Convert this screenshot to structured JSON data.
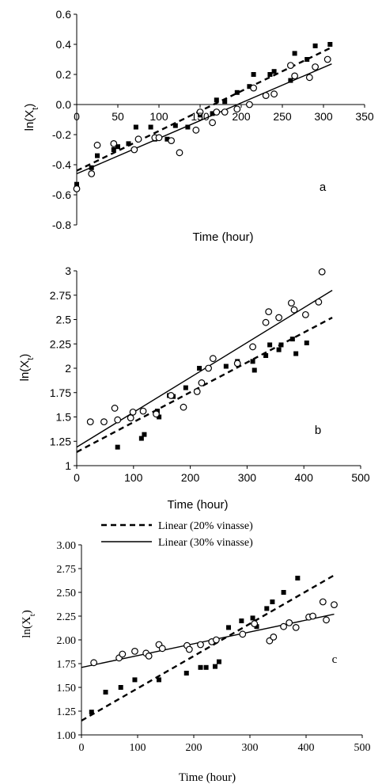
{
  "chart_data": [
    {
      "type": "scatter",
      "panel_label": "a",
      "font": "sans",
      "xlabel": "Time (hour)",
      "ylabel_base": "ln(X",
      "ylabel_sub": "t",
      "ylabel_close": ")",
      "xlim": [
        0,
        350
      ],
      "ylim": [
        -0.8,
        0.6
      ],
      "x_axis_at_zero": true,
      "xticks": [
        "0",
        "50",
        "100",
        "150",
        "200",
        "250",
        "300",
        "350"
      ],
      "yticks": [
        "-0.8",
        "-0.6",
        "-0.4",
        "-0.2",
        "0.0",
        "0.2",
        "0.4",
        "0.6"
      ],
      "legend": null,
      "series": [
        {
          "marker": "square-filled",
          "x": [
            0,
            18,
            25,
            45,
            50,
            63,
            72,
            90,
            95,
            110,
            120,
            135,
            150,
            165,
            170,
            180,
            195,
            210,
            215,
            235,
            240,
            260,
            265,
            280,
            290,
            308
          ],
          "y": [
            -0.53,
            -0.42,
            -0.34,
            -0.3,
            -0.28,
            -0.26,
            -0.15,
            -0.15,
            -0.23,
            -0.23,
            -0.14,
            -0.15,
            -0.07,
            -0.06,
            0.03,
            0.02,
            0.08,
            0.12,
            0.2,
            0.2,
            0.22,
            0.16,
            0.34,
            0.3,
            0.39,
            0.4
          ],
          "trend": {
            "style": "dashed",
            "x": [
              0,
              310
            ],
            "y": [
              -0.44,
              0.38
            ]
          }
        },
        {
          "marker": "circle-open",
          "x": [
            0,
            18,
            25,
            45,
            70,
            75,
            95,
            100,
            115,
            125,
            145,
            150,
            165,
            170,
            180,
            195,
            210,
            215,
            230,
            240,
            260,
            265,
            283,
            290,
            305
          ],
          "y": [
            -0.56,
            -0.46,
            -0.27,
            -0.26,
            -0.3,
            -0.23,
            -0.22,
            -0.22,
            -0.24,
            -0.32,
            -0.17,
            -0.05,
            -0.12,
            -0.05,
            -0.05,
            -0.03,
            0.0,
            0.11,
            0.06,
            0.07,
            0.26,
            0.19,
            0.18,
            0.25,
            0.3
          ],
          "trend": {
            "style": "solid",
            "x": [
              0,
              310
            ],
            "y": [
              -0.46,
              0.27
            ]
          }
        }
      ]
    },
    {
      "type": "scatter",
      "panel_label": "b",
      "font": "sans",
      "xlabel": "Time (hour)",
      "ylabel_base": "ln(X",
      "ylabel_sub": "t",
      "ylabel_close": ")",
      "xlim": [
        0,
        500
      ],
      "ylim": [
        1,
        3
      ],
      "x_axis_at_zero": false,
      "xticks": [
        "0",
        "100",
        "200",
        "300",
        "400",
        "500"
      ],
      "yticks": [
        "1",
        "1.25",
        "1.5",
        "1.75",
        "2",
        "2.25",
        "2.5",
        "2.75",
        "3"
      ],
      "legend": null,
      "series": [
        {
          "marker": "square-filled",
          "x": [
            72,
            114,
            119,
            142,
            145,
            163,
            170,
            192,
            216,
            263,
            283,
            310,
            313,
            333,
            340,
            356,
            360,
            380,
            386,
            405
          ],
          "y": [
            1.19,
            1.28,
            1.32,
            1.56,
            1.5,
            1.72,
            1.71,
            1.8,
            2.0,
            2.02,
            2.07,
            2.07,
            1.98,
            2.13,
            2.24,
            2.19,
            2.24,
            2.3,
            2.15,
            2.26
          ],
          "trend": {
            "style": "dashed",
            "x": [
              0,
              450
            ],
            "y": [
              1.14,
              2.52
            ]
          }
        },
        {
          "marker": "circle-open",
          "x": [
            24,
            48,
            67,
            72,
            95,
            99,
            117,
            140,
            166,
            188,
            212,
            220,
            232,
            240,
            283,
            310,
            333,
            338,
            356,
            378,
            383,
            403,
            426,
            432
          ],
          "y": [
            1.45,
            1.45,
            1.59,
            1.47,
            1.49,
            1.55,
            1.56,
            1.53,
            1.72,
            1.6,
            1.76,
            1.85,
            2.0,
            2.1,
            2.05,
            2.22,
            2.47,
            2.58,
            2.52,
            2.67,
            2.6,
            2.55,
            2.68,
            2.99
          ],
          "trend": {
            "style": "solid",
            "x": [
              0,
              450
            ],
            "y": [
              1.19,
              2.8
            ]
          }
        }
      ]
    },
    {
      "type": "scatter",
      "panel_label": "c",
      "font": "serif",
      "xlabel": "Time (hour)",
      "ylabel_base": "ln(X",
      "ylabel_sub": "t",
      "ylabel_close": ")",
      "xlim": [
        0,
        500
      ],
      "ylim": [
        1,
        3
      ],
      "x_axis_at_zero": false,
      "xticks": [
        "0",
        "100",
        "200",
        "300",
        "400",
        "500"
      ],
      "yticks": [
        "1.00",
        "1.25",
        "1.50",
        "1.75",
        "2.00",
        "2.25",
        "2.50",
        "2.75",
        "3.00"
      ],
      "legend": {
        "position": "top-left",
        "entries": [
          "Linear (20% vinasse)",
          "Linear (30% vinasse)"
        ]
      },
      "series": [
        {
          "marker": "square-filled",
          "x": [
            18,
            43,
            70,
            95,
            138,
            187,
            212,
            222,
            238,
            245,
            262,
            285,
            305,
            312,
            330,
            340,
            360,
            385
          ],
          "y": [
            1.24,
            1.45,
            1.5,
            1.58,
            1.58,
            1.65,
            1.71,
            1.71,
            1.72,
            1.77,
            2.13,
            2.2,
            2.23,
            2.14,
            2.33,
            2.4,
            2.5,
            2.65
          ],
          "trend": {
            "style": "dashed",
            "x": [
              0,
              450
            ],
            "y": [
              1.15,
              2.68
            ]
          }
        },
        {
          "marker": "circle-open",
          "x": [
            22,
            67,
            73,
            95,
            115,
            120,
            138,
            144,
            188,
            192,
            212,
            232,
            240,
            287,
            308,
            335,
            342,
            360,
            370,
            382,
            405,
            412,
            430,
            436,
            450
          ],
          "y": [
            1.76,
            1.81,
            1.85,
            1.88,
            1.86,
            1.83,
            1.95,
            1.91,
            1.94,
            1.9,
            1.95,
            1.98,
            2.0,
            2.06,
            2.17,
            1.99,
            2.03,
            2.14,
            2.18,
            2.13,
            2.24,
            2.25,
            2.4,
            2.21,
            2.37
          ],
          "trend": {
            "style": "solid",
            "x": [
              0,
              450
            ],
            "y": [
              1.71,
              2.27
            ]
          }
        }
      ]
    }
  ]
}
